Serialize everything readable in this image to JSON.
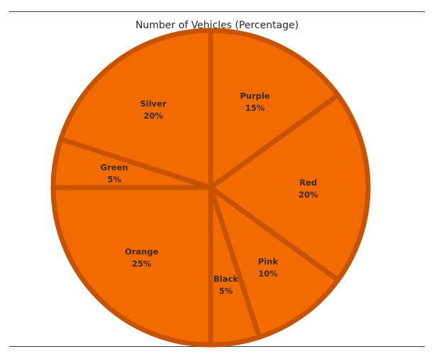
{
  "chart_data": {
    "type": "pie",
    "title": "Number of Vehicles (Percentage)",
    "slices": [
      {
        "label": "Purple",
        "value": 15
      },
      {
        "label": "Red",
        "value": 20
      },
      {
        "label": "Pink",
        "value": 10
      },
      {
        "label": "Black",
        "value": 5
      },
      {
        "label": "Orange",
        "value": 25
      },
      {
        "label": "Green",
        "value": 5
      },
      {
        "label": "Silver",
        "value": 20
      }
    ],
    "value_suffix": "%",
    "colors": {
      "slice_fill": "#F26B00",
      "slice_edge": "#C75300"
    }
  }
}
